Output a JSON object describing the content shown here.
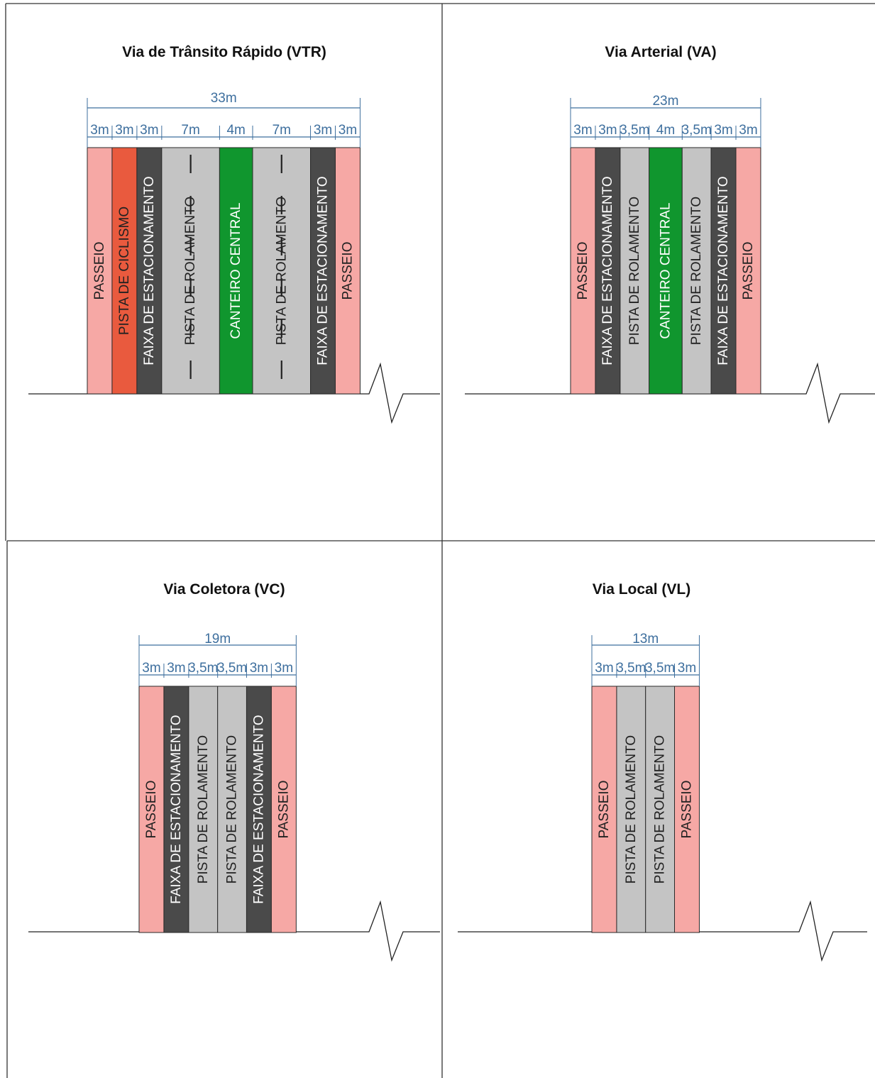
{
  "colors": {
    "passeio": "#F6A8A5",
    "ciclismo": "#E95A3E",
    "estacionamento": "#4A4A4A",
    "rolamento": "#C4C4C4",
    "canteiro": "#10962E",
    "dimension": "#3E6F9E",
    "label_dark": "#222222",
    "label_light": "#FFFFFF",
    "frame": "#333333"
  },
  "panels": [
    {
      "id": "vtr",
      "title": "Via de Trânsito Rápido (VTR)",
      "total_label": "33m",
      "segments": [
        {
          "kind": "passeio",
          "width_m": 3,
          "width_label": "3m",
          "text": "PASSEIO"
        },
        {
          "kind": "ciclismo",
          "width_m": 3,
          "width_label": "3m",
          "text": "PISTA DE CICLISMO"
        },
        {
          "kind": "estacionamento",
          "width_m": 3,
          "width_label": "3m",
          "text": "FAIXA DE ESTACIONAMENTO"
        },
        {
          "kind": "rolamento",
          "width_m": 7,
          "width_label": "7m",
          "text": "PISTA DE ROLAMENTO",
          "dashed": true
        },
        {
          "kind": "canteiro",
          "width_m": 4,
          "width_label": "4m",
          "text": "CANTEIRO CENTRAL"
        },
        {
          "kind": "rolamento",
          "width_m": 7,
          "width_label": "7m",
          "text": "PISTA DE ROLAMENTO",
          "dashed": true
        },
        {
          "kind": "estacionamento",
          "width_m": 3,
          "width_label": "3m",
          "text": "FAIXA DE ESTACIONAMENTO"
        },
        {
          "kind": "passeio",
          "width_m": 3,
          "width_label": "3m",
          "text": "PASSEIO"
        }
      ]
    },
    {
      "id": "va",
      "title": "Via Arterial (VA)",
      "total_label": "23m",
      "segments": [
        {
          "kind": "passeio",
          "width_m": 3,
          "width_label": "3m",
          "text": "PASSEIO"
        },
        {
          "kind": "estacionamento",
          "width_m": 3,
          "width_label": "3m",
          "text": "FAIXA DE ESTACIONAMENTO"
        },
        {
          "kind": "rolamento",
          "width_m": 3.5,
          "width_label": "3,5m",
          "text": "PISTA DE ROLAMENTO"
        },
        {
          "kind": "canteiro",
          "width_m": 4,
          "width_label": "4m",
          "text": "CANTEIRO CENTRAL"
        },
        {
          "kind": "rolamento",
          "width_m": 3.5,
          "width_label": "3,5m",
          "text": "PISTA DE ROLAMENTO"
        },
        {
          "kind": "estacionamento",
          "width_m": 3,
          "width_label": "3m",
          "text": "FAIXA DE ESTACIONAMENTO"
        },
        {
          "kind": "passeio",
          "width_m": 3,
          "width_label": "3m",
          "text": "PASSEIO"
        }
      ]
    },
    {
      "id": "vc",
      "title": "Via Coletora (VC)",
      "total_label": "19m",
      "segments": [
        {
          "kind": "passeio",
          "width_m": 3,
          "width_label": "3m",
          "text": "PASSEIO"
        },
        {
          "kind": "estacionamento",
          "width_m": 3,
          "width_label": "3m",
          "text": "FAIXA DE ESTACIONAMENTO"
        },
        {
          "kind": "rolamento",
          "width_m": 3.5,
          "width_label": "3,5m",
          "text": "PISTA DE ROLAMENTO"
        },
        {
          "kind": "rolamento",
          "width_m": 3.5,
          "width_label": "3,5m",
          "text": "PISTA DE ROLAMENTO"
        },
        {
          "kind": "estacionamento",
          "width_m": 3,
          "width_label": "3m",
          "text": "FAIXA DE ESTACIONAMENTO"
        },
        {
          "kind": "passeio",
          "width_m": 3,
          "width_label": "3m",
          "text": "PASSEIO"
        }
      ]
    },
    {
      "id": "vl",
      "title": "Via Local (VL)",
      "total_label": "13m",
      "segments": [
        {
          "kind": "passeio",
          "width_m": 3,
          "width_label": "3m",
          "text": "PASSEIO"
        },
        {
          "kind": "rolamento",
          "width_m": 3.5,
          "width_label": "3,5m",
          "text": "PISTA DE ROLAMENTO"
        },
        {
          "kind": "rolamento",
          "width_m": 3.5,
          "width_label": "3,5m",
          "text": "PISTA DE ROLAMENTO"
        },
        {
          "kind": "passeio",
          "width_m": 3,
          "width_label": "3m",
          "text": "PASSEIO"
        }
      ]
    }
  ]
}
